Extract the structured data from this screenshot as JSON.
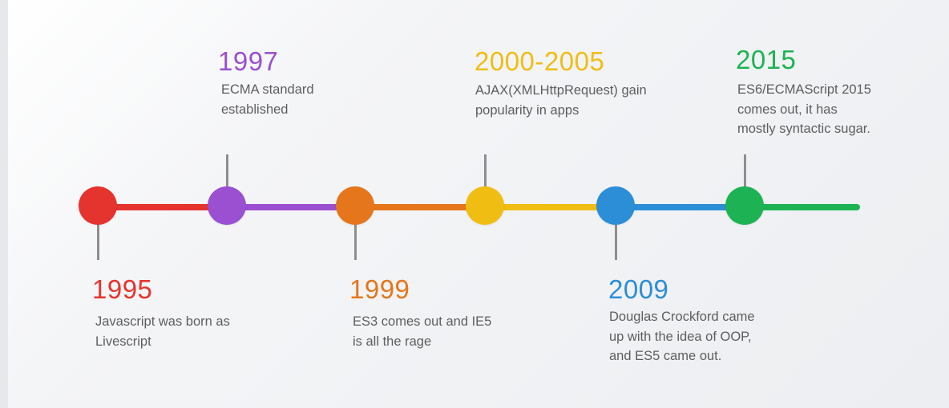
{
  "timeline": {
    "colors": {
      "red": "#e5342d",
      "purple": "#9b4fd1",
      "orange": "#e5761b",
      "yellow": "#f0bd13",
      "blue": "#2c8ed6",
      "green": "#1db354"
    },
    "events": [
      {
        "year": "1995",
        "text": "Javascript was born as\nLivescript",
        "color": "#e5342d"
      },
      {
        "year": "1997",
        "text": "ECMA standard\nestablished",
        "color": "#9b4fd1"
      },
      {
        "year": "1999",
        "text": "ES3 comes out and IE5\nis all the rage",
        "color": "#e5761b"
      },
      {
        "year": "2000-2005",
        "text": "AJAX(XMLHttpRequest) gain\npopularity in apps",
        "color": "#f0bd13"
      },
      {
        "year": "2009",
        "text": "Douglas Crockford came\nup with the idea of OOP,\nand ES5 came out.",
        "color": "#2c8ed6"
      },
      {
        "year": "2015",
        "text": "ES6/ECMAScript 2015\ncomes out, it has\nmostly syntactic sugar.",
        "color": "#1db354"
      }
    ]
  }
}
